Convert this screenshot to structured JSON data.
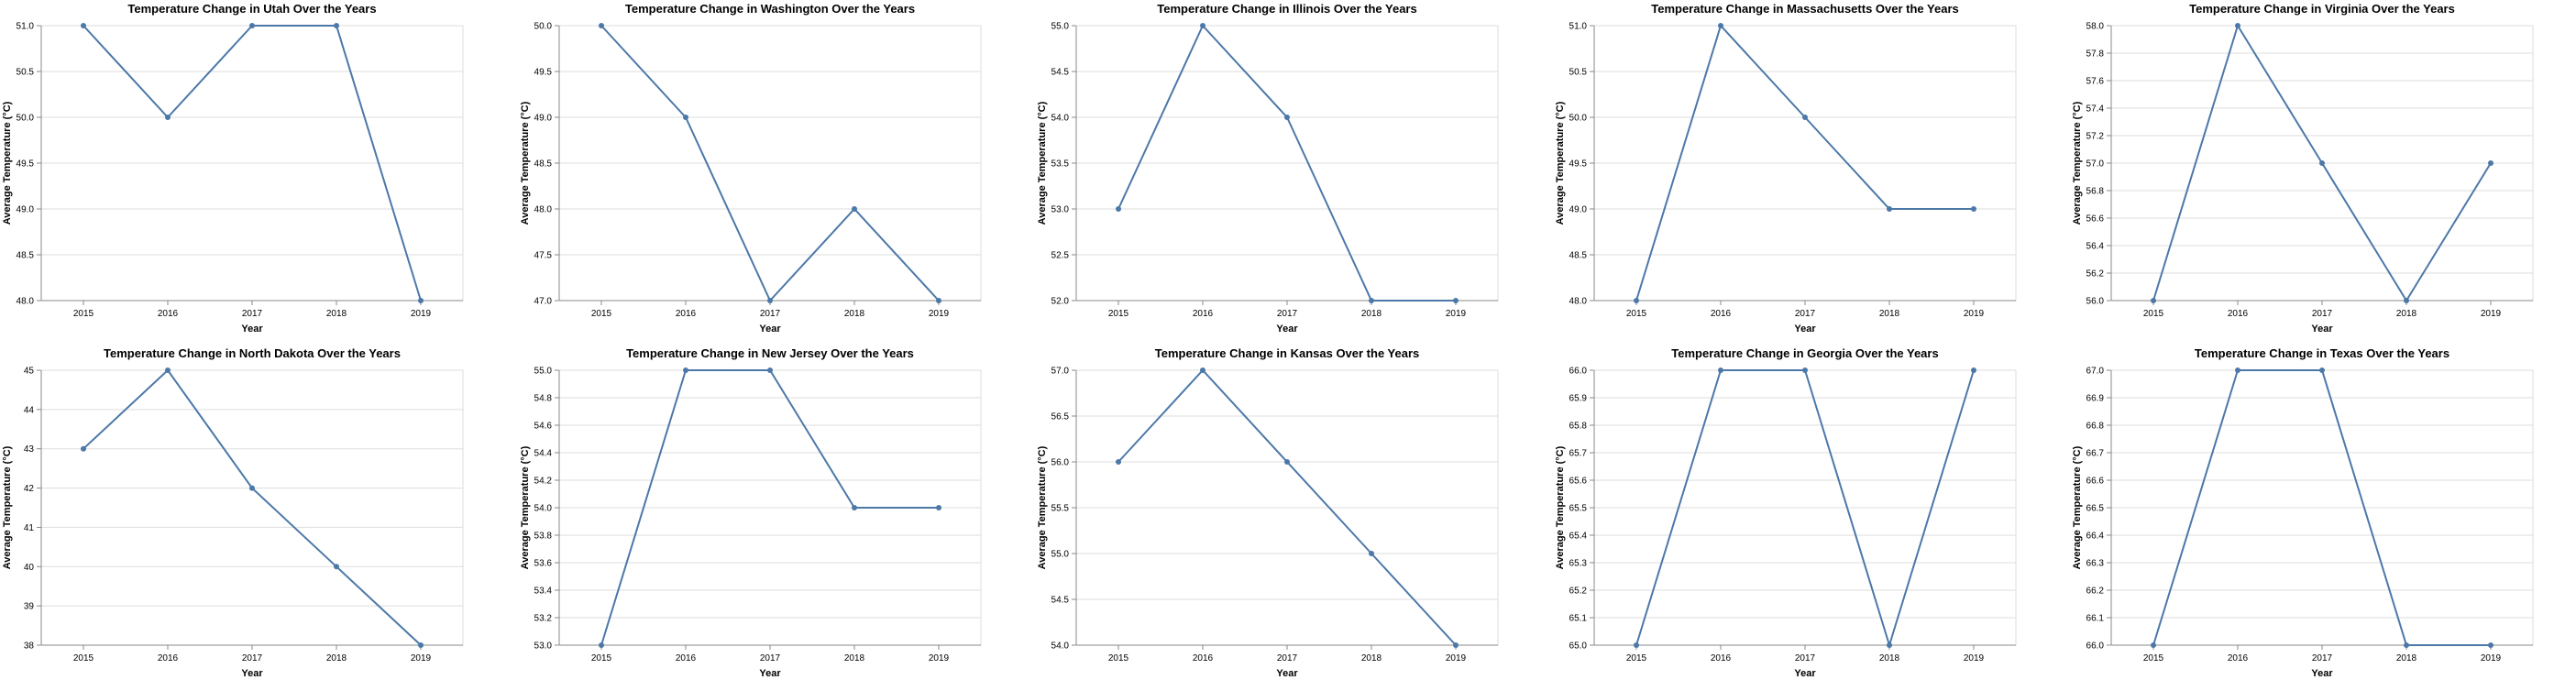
{
  "series_color": "#4c78a8",
  "chart_data": [
    {
      "type": "line",
      "title": "Temperature Change in Utah Over the Years",
      "xlabel": "Year",
      "ylabel": "Average Temperature (°C)",
      "x": [
        2015,
        2016,
        2017,
        2018,
        2019
      ],
      "y": [
        51,
        50,
        51,
        51,
        48
      ],
      "ylim": [
        48,
        51
      ],
      "yticks": [
        "48.0",
        "48.5",
        "49.0",
        "49.5",
        "50.0",
        "50.5",
        "51.0"
      ],
      "grid": true
    },
    {
      "type": "line",
      "title": "Temperature Change in Washington Over the Years",
      "xlabel": "Year",
      "ylabel": "Average Temperature (°C)",
      "x": [
        2015,
        2016,
        2017,
        2018,
        2019
      ],
      "y": [
        50,
        49,
        47,
        48,
        47
      ],
      "ylim": [
        47,
        50
      ],
      "yticks": [
        "47.0",
        "47.5",
        "48.0",
        "48.5",
        "49.0",
        "49.5",
        "50.0"
      ],
      "grid": true
    },
    {
      "type": "line",
      "title": "Temperature Change in Illinois Over the Years",
      "xlabel": "Year",
      "ylabel": "Average Temperature (°C)",
      "x": [
        2015,
        2016,
        2017,
        2018,
        2019
      ],
      "y": [
        53,
        55,
        54,
        52,
        52
      ],
      "ylim": [
        52,
        55
      ],
      "yticks": [
        "52.0",
        "52.5",
        "53.0",
        "53.5",
        "54.0",
        "54.5",
        "55.0"
      ],
      "grid": true
    },
    {
      "type": "line",
      "title": "Temperature Change in Massachusetts Over the Years",
      "xlabel": "Year",
      "ylabel": "Average Temperature (°C)",
      "x": [
        2015,
        2016,
        2017,
        2018,
        2019
      ],
      "y": [
        48,
        51,
        50,
        49,
        49
      ],
      "ylim": [
        48,
        51
      ],
      "yticks": [
        "48.0",
        "48.5",
        "49.0",
        "49.5",
        "50.0",
        "50.5",
        "51.0"
      ],
      "grid": true
    },
    {
      "type": "line",
      "title": "Temperature Change in Virginia Over the Years",
      "xlabel": "Year",
      "ylabel": "Average Temperature (°C)",
      "x": [
        2015,
        2016,
        2017,
        2018,
        2019
      ],
      "y": [
        56,
        58,
        57,
        56,
        57
      ],
      "ylim": [
        56,
        58
      ],
      "yticks": [
        "56.0",
        "56.2",
        "56.4",
        "56.6",
        "56.8",
        "57.0",
        "57.2",
        "57.4",
        "57.6",
        "57.8",
        "58.0"
      ],
      "grid": true
    },
    {
      "type": "line",
      "title": "Temperature Change in North Dakota Over the Years",
      "xlabel": "Year",
      "ylabel": "Average Temperature (°C)",
      "x": [
        2015,
        2016,
        2017,
        2018,
        2019
      ],
      "y": [
        43,
        45,
        42,
        40,
        38
      ],
      "ylim": [
        38,
        45
      ],
      "yticks": [
        "38",
        "39",
        "40",
        "41",
        "42",
        "43",
        "44",
        "45"
      ],
      "grid": true
    },
    {
      "type": "line",
      "title": "Temperature Change in New Jersey Over the Years",
      "xlabel": "Year",
      "ylabel": "Average Temperature (°C)",
      "x": [
        2015,
        2016,
        2017,
        2018,
        2019
      ],
      "y": [
        53,
        55,
        55,
        54,
        54
      ],
      "ylim": [
        53,
        55
      ],
      "yticks": [
        "53.0",
        "53.2",
        "53.4",
        "53.6",
        "53.8",
        "54.0",
        "54.2",
        "54.4",
        "54.6",
        "54.8",
        "55.0"
      ],
      "grid": true
    },
    {
      "type": "line",
      "title": "Temperature Change in Kansas Over the Years",
      "xlabel": "Year",
      "ylabel": "Average Temperature (°C)",
      "x": [
        2015,
        2016,
        2017,
        2018,
        2019
      ],
      "y": [
        56,
        57,
        56,
        55,
        54
      ],
      "ylim": [
        54,
        57
      ],
      "yticks": [
        "54.0",
        "54.5",
        "55.0",
        "55.5",
        "56.0",
        "56.5",
        "57.0"
      ],
      "grid": true
    },
    {
      "type": "line",
      "title": "Temperature Change in Georgia Over the Years",
      "xlabel": "Year",
      "ylabel": "Average Temperature (°C)",
      "x": [
        2015,
        2016,
        2017,
        2018,
        2019
      ],
      "y": [
        65,
        66,
        66,
        65,
        66
      ],
      "ylim": [
        65,
        66
      ],
      "yticks": [
        "65.0",
        "65.1",
        "65.2",
        "65.3",
        "65.4",
        "65.5",
        "65.6",
        "65.7",
        "65.8",
        "65.9",
        "66.0"
      ],
      "grid": true
    },
    {
      "type": "line",
      "title": "Temperature Change in Texas Over the Years",
      "xlabel": "Year",
      "ylabel": "Average Temperature (°C)",
      "x": [
        2015,
        2016,
        2017,
        2018,
        2019
      ],
      "y": [
        66,
        67,
        67,
        66,
        66
      ],
      "ylim": [
        66,
        67
      ],
      "yticks": [
        "66.0",
        "66.1",
        "66.2",
        "66.3",
        "66.4",
        "66.5",
        "66.6",
        "66.7",
        "66.8",
        "66.9",
        "67.0"
      ],
      "grid": true
    }
  ]
}
